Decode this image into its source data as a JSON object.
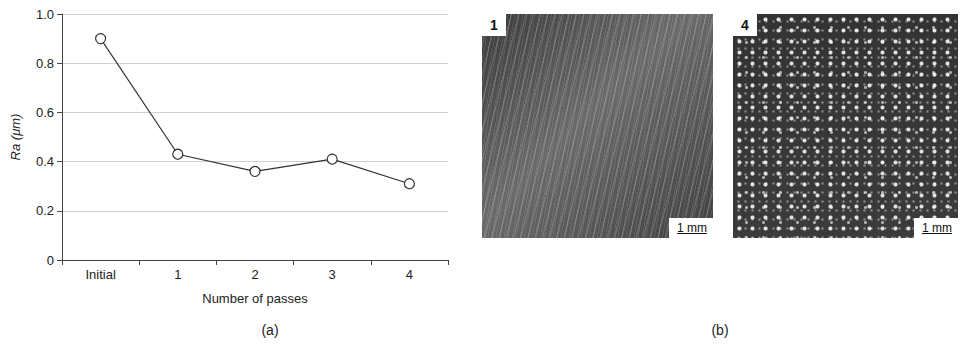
{
  "chart_data": {
    "type": "line",
    "x_label": "Number of passes",
    "y_label": "Ra (μm)",
    "categories": [
      "Initial",
      "1",
      "2",
      "3",
      "4"
    ],
    "values": [
      0.9,
      0.43,
      0.36,
      0.41,
      0.31
    ],
    "color": "#333333",
    "marker": "circle",
    "ylim": [
      0,
      1
    ],
    "yticks": [
      0,
      0.2,
      0.4,
      0.6,
      0.8,
      {
        "value": 1,
        "label": "1.0"
      }
    ],
    "grid": true
  },
  "panel_labels": [
    "(a)",
    "(b)"
  ],
  "images": [
    {
      "label": "1",
      "scale_bar": "1 mm"
    },
    {
      "label": "4",
      "scale_bar": "1 mm"
    }
  ]
}
